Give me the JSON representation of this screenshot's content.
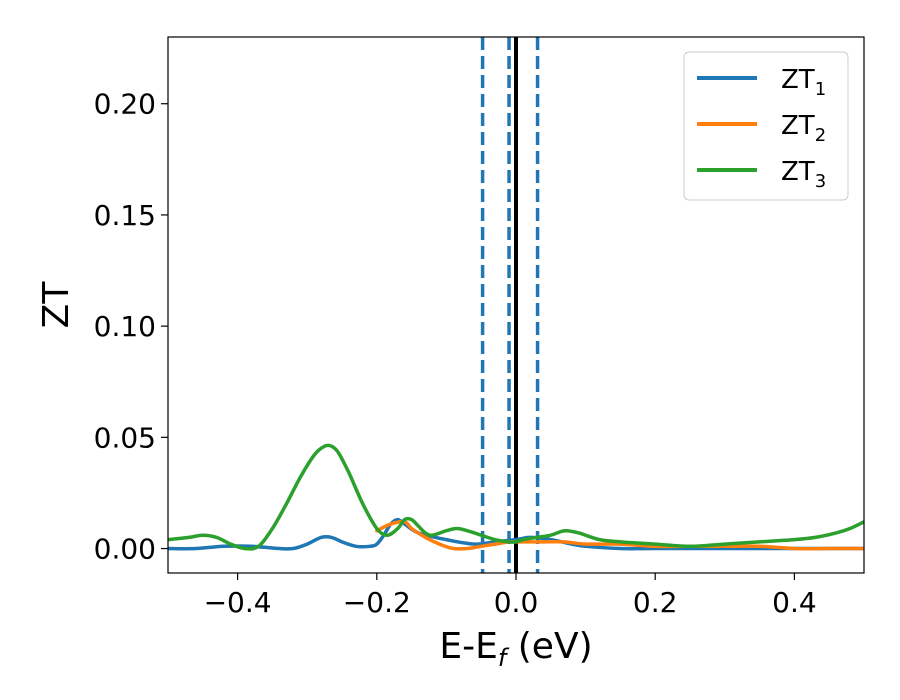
{
  "chart_data": {
    "type": "line",
    "xlabel": "E-E",
    "xlabel_subscript": "f",
    "xlabel_unit": " (eV)",
    "ylabel": "ZT",
    "xlim": [
      -0.5,
      0.5
    ],
    "ylim": [
      -0.011,
      0.23
    ],
    "xticks": [
      -0.4,
      -0.2,
      0.0,
      0.2,
      0.4
    ],
    "xtick_labels": [
      "−0.4",
      "−0.2",
      "0.0",
      "0.2",
      "0.4"
    ],
    "yticks": [
      0.0,
      0.05,
      0.1,
      0.15,
      0.2
    ],
    "ytick_labels": [
      "0.00",
      "0.05",
      "0.10",
      "0.15",
      "0.20"
    ],
    "grid": false,
    "legend_position": "top-right",
    "reference_lines": [
      {
        "x": 0.0,
        "style": "solid",
        "color": "#000000"
      },
      {
        "x": -0.048,
        "style": "dashed",
        "color": "#1f77b4"
      },
      {
        "x": -0.01,
        "style": "dashed",
        "color": "#1f77b4"
      },
      {
        "x": 0.031,
        "style": "dashed",
        "color": "#1f77b4"
      }
    ],
    "series": [
      {
        "name": "ZT",
        "subscript": "1",
        "color": "#1f77b4",
        "x": [
          -0.5,
          -0.46,
          -0.42,
          -0.38,
          -0.34,
          -0.32,
          -0.3,
          -0.28,
          -0.265,
          -0.25,
          -0.23,
          -0.21,
          -0.2,
          -0.19,
          -0.18,
          -0.17,
          -0.16,
          -0.14,
          -0.1,
          -0.06,
          -0.03,
          0.0,
          0.02,
          0.05,
          0.08,
          0.1,
          0.15,
          0.2,
          0.25,
          0.3,
          0.35,
          0.4,
          0.45,
          0.5
        ],
        "y": [
          0.0,
          0.0,
          0.001,
          0.001,
          0.0,
          0.0,
          0.002,
          0.005,
          0.005,
          0.003,
          0.001,
          0.001,
          0.002,
          0.006,
          0.011,
          0.013,
          0.011,
          0.007,
          0.004,
          0.002,
          0.003,
          0.004,
          0.005,
          0.004,
          0.002,
          0.001,
          0.0,
          0.0,
          0.0,
          0.0,
          0.0,
          0.0,
          0.0,
          0.0
        ]
      },
      {
        "name": "ZT",
        "subscript": "2",
        "color": "#ff7f0e",
        "x": [
          -0.2,
          -0.18,
          -0.16,
          -0.15,
          -0.13,
          -0.11,
          -0.09,
          -0.07,
          -0.05,
          -0.03,
          -0.01,
          0.0,
          0.02,
          0.04,
          0.07,
          0.1,
          0.15,
          0.2,
          0.25,
          0.3,
          0.35,
          0.4,
          0.45,
          0.5
        ],
        "y": [
          0.008,
          0.011,
          0.012,
          0.009,
          0.005,
          0.002,
          0.0,
          0.0,
          0.001,
          0.002,
          0.003,
          0.003,
          0.003,
          0.003,
          0.003,
          0.002,
          0.002,
          0.001,
          0.001,
          0.001,
          0.001,
          0.0,
          0.0,
          0.0
        ]
      },
      {
        "name": "ZT",
        "subscript": "3",
        "color": "#2ca02c",
        "x": [
          -0.5,
          -0.47,
          -0.45,
          -0.43,
          -0.41,
          -0.39,
          -0.37,
          -0.35,
          -0.33,
          -0.31,
          -0.29,
          -0.275,
          -0.265,
          -0.255,
          -0.24,
          -0.22,
          -0.2,
          -0.185,
          -0.17,
          -0.16,
          -0.15,
          -0.14,
          -0.13,
          -0.12,
          -0.1,
          -0.085,
          -0.07,
          -0.05,
          -0.03,
          -0.01,
          0.0,
          0.01,
          0.03,
          0.05,
          0.07,
          0.09,
          0.12,
          0.15,
          0.2,
          0.25,
          0.3,
          0.35,
          0.4,
          0.43,
          0.46,
          0.48,
          0.5
        ],
        "y": [
          0.004,
          0.005,
          0.006,
          0.005,
          0.002,
          0.0,
          0.001,
          0.009,
          0.02,
          0.032,
          0.042,
          0.046,
          0.046,
          0.043,
          0.034,
          0.02,
          0.009,
          0.006,
          0.009,
          0.013,
          0.013,
          0.01,
          0.007,
          0.006,
          0.008,
          0.009,
          0.008,
          0.006,
          0.004,
          0.003,
          0.003,
          0.004,
          0.005,
          0.006,
          0.008,
          0.007,
          0.004,
          0.003,
          0.002,
          0.001,
          0.002,
          0.003,
          0.004,
          0.005,
          0.007,
          0.009,
          0.012
        ]
      }
    ]
  }
}
